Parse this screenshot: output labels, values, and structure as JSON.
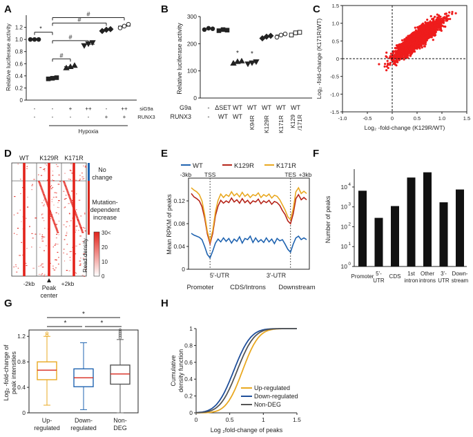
{
  "panels": {
    "A": "A",
    "B": "B",
    "C": "C",
    "D": "D",
    "E": "E",
    "F": "F",
    "G": "G",
    "H": "H"
  },
  "colors": {
    "red": "#d7261b",
    "blue": "#1f63b0",
    "orange": "#e9a820",
    "darkred": "#b52318",
    "navy": "#1e4e9a",
    "gray": "#555555",
    "link": "#1f63b0"
  },
  "chart_data": [
    {
      "id": "A",
      "type": "scatter",
      "ylabel": "Relative luciferase activity",
      "ylim": [
        0,
        1.4
      ],
      "yticks": [
        "0",
        "0.2",
        "0.4",
        "0.6",
        "0.8",
        "1.0",
        "1.2"
      ],
      "rows": [
        {
          "name": "siG9a",
          "values": [
            "-",
            "-",
            "+",
            "++",
            "-",
            "++"
          ]
        },
        {
          "name": "RUNX3",
          "values": [
            "-",
            "-",
            "-",
            "-",
            "+",
            "+"
          ]
        }
      ],
      "hypoxia_label": "Hypoxia",
      "groups": [
        {
          "mean": 1.0,
          "points": [
            1.0,
            1.0,
            1.0
          ],
          "marker": "circle"
        },
        {
          "mean": 0.36,
          "points": [
            0.35,
            0.36,
            0.37
          ],
          "marker": "square"
        },
        {
          "mean": 0.55,
          "points": [
            0.53,
            0.55,
            0.57
          ],
          "marker": "triangle"
        },
        {
          "mean": 0.92,
          "points": [
            0.9,
            0.93,
            0.95
          ],
          "marker": "triangle-down"
        },
        {
          "mean": 1.15,
          "points": [
            1.14,
            1.16,
            1.17
          ],
          "marker": "diamond"
        },
        {
          "mean": 1.22,
          "points": [
            1.19,
            1.22,
            1.25
          ],
          "marker": "circle-open"
        }
      ],
      "significance": [
        {
          "from": 0,
          "to": 1,
          "label": "*"
        },
        {
          "from": 1,
          "to": 2,
          "label": "#"
        },
        {
          "from": 1,
          "to": 3,
          "label": "#"
        },
        {
          "from": 1,
          "to": 4,
          "label": "#"
        },
        {
          "from": 1,
          "to": 5,
          "label": "#"
        }
      ]
    },
    {
      "id": "B",
      "type": "scatter",
      "ylabel": "Relative luciferase activity",
      "ylim": [
        0,
        300
      ],
      "yticks": [
        "0",
        "100",
        "200",
        "300"
      ],
      "row1_name": "G9a",
      "row2_name": "RUNX3",
      "categories": [
        {
          "g9a": "-",
          "runx3": "-",
          "mean": 255,
          "points": [
            252,
            257,
            255
          ],
          "marker": "circle"
        },
        {
          "g9a": "ΔSET",
          "runx3": "WT",
          "mean": 250,
          "points": [
            248,
            252,
            250
          ],
          "marker": "square"
        },
        {
          "g9a": "WT",
          "runx3": "WT",
          "mean": 132,
          "points": [
            128,
            134,
            136
          ],
          "marker": "triangle",
          "sig": "*"
        },
        {
          "g9a": "WT",
          "runx3": "K94R",
          "mean": 130,
          "points": [
            126,
            130,
            134
          ],
          "marker": "triangle-down",
          "sig": "*"
        },
        {
          "g9a": "WT",
          "runx3": "K129R",
          "mean": 225,
          "points": [
            220,
            226,
            229
          ],
          "marker": "diamond"
        },
        {
          "g9a": "WT",
          "runx3": "K171R",
          "mean": 232,
          "points": [
            224,
            232,
            236
          ],
          "marker": "circle-open"
        },
        {
          "g9a": "WT",
          "runx3": "K129/171R",
          "mean": 238,
          "points": [
            232,
            240,
            242
          ],
          "marker": "square-open"
        }
      ]
    },
    {
      "id": "C",
      "type": "scatter",
      "xlabel": "Log₂ -fold-change (K129R/WT)",
      "ylabel": "Log₂ -fold-change (K171R/WT)",
      "xlim": [
        -1.0,
        1.5
      ],
      "ylim": [
        -1.5,
        1.5
      ],
      "xticks": [
        "-1.0",
        "-0.5",
        "0",
        "0.5",
        "1.0",
        "1.5"
      ],
      "yticks": [
        "-1.5",
        "-1.0",
        "-0.5",
        "0",
        "0.5",
        "1.0",
        "1.5"
      ],
      "color": "#ee1c1c",
      "cloud": {
        "center_x": 0.5,
        "center_y": 0.55,
        "correlation": 0.9,
        "sd_x": 0.22,
        "sd_y": 0.25
      }
    },
    {
      "id": "D",
      "type": "heatmap",
      "columns": [
        "WT",
        "K129R",
        "K171R"
      ],
      "groups": [
        {
          "label": "No change",
          "color": "#1f63b0"
        },
        {
          "label": "Mutation-dependent increase",
          "color": "#d7261b"
        }
      ],
      "x_ticks": [
        "-2kb",
        "+2kb"
      ],
      "center_label": "Peak center",
      "colorbar": {
        "title": "Read density",
        "ticks": [
          "0",
          "10",
          "20",
          "30<"
        ]
      }
    },
    {
      "id": "E",
      "type": "line",
      "ylabel": "Mean RPKM of peaks",
      "ylim": [
        0,
        0.16
      ],
      "yticks": [
        "0",
        "0.04",
        "0.08",
        "0.12"
      ],
      "legend": [
        "WT",
        "K129R",
        "K171R"
      ],
      "top_labels": [
        "-3kb",
        "TSS",
        "TES",
        "+3kb"
      ],
      "regions": [
        "5'-UTR",
        "3'-UTR"
      ],
      "xlabels": [
        "Promoter",
        "CDS/Introns",
        "Downstream"
      ],
      "series": [
        {
          "name": "WT",
          "color": "#1f63b0",
          "values": [
            0.063,
            0.06,
            0.058,
            0.056,
            0.052,
            0.04,
            0.026,
            0.02,
            0.032,
            0.046,
            0.053,
            0.048,
            0.055,
            0.049,
            0.054,
            0.046,
            0.053,
            0.049,
            0.057,
            0.046,
            0.054,
            0.052,
            0.058,
            0.047,
            0.055,
            0.048,
            0.052,
            0.047,
            0.055,
            0.048,
            0.053,
            0.045,
            0.054,
            0.05,
            0.052,
            0.044,
            0.035,
            0.03,
            0.044,
            0.055,
            0.058,
            0.052,
            0.055,
            0.052
          ]
        },
        {
          "name": "K129R",
          "color": "#b52318",
          "values": [
            0.133,
            0.127,
            0.124,
            0.12,
            0.11,
            0.09,
            0.062,
            0.045,
            0.063,
            0.094,
            0.111,
            0.121,
            0.116,
            0.12,
            0.117,
            0.125,
            0.118,
            0.122,
            0.116,
            0.124,
            0.117,
            0.121,
            0.115,
            0.12,
            0.118,
            0.123,
            0.115,
            0.12,
            0.117,
            0.121,
            0.114,
            0.119,
            0.117,
            0.112,
            0.103,
            0.096,
            0.085,
            0.08,
            0.097,
            0.124,
            0.131,
            0.122,
            0.126,
            0.122
          ]
        },
        {
          "name": "K171R",
          "color": "#e9a820",
          "values": [
            0.143,
            0.139,
            0.136,
            0.131,
            0.12,
            0.096,
            0.066,
            0.049,
            0.068,
            0.101,
            0.121,
            0.132,
            0.126,
            0.131,
            0.128,
            0.136,
            0.129,
            0.133,
            0.127,
            0.135,
            0.128,
            0.132,
            0.126,
            0.131,
            0.129,
            0.134,
            0.126,
            0.131,
            0.128,
            0.132,
            0.125,
            0.13,
            0.128,
            0.122,
            0.113,
            0.104,
            0.092,
            0.087,
            0.106,
            0.136,
            0.143,
            0.133,
            0.137,
            0.133
          ]
        }
      ]
    },
    {
      "id": "F",
      "type": "bar",
      "log_scale": true,
      "ylabel": "Number of peaks",
      "yticks": [
        {
          "base": "10",
          "exp": "0"
        },
        {
          "base": "10",
          "exp": "1"
        },
        {
          "base": "10",
          "exp": "2"
        },
        {
          "base": "10",
          "exp": "3"
        },
        {
          "base": "10",
          "exp": "4"
        }
      ],
      "categories": [
        {
          "label": "Promoter",
          "value": 6500,
          "colored": true
        },
        {
          "label": "5'-UTR",
          "value": 280,
          "colored": false
        },
        {
          "label": "CDS",
          "value": 1100,
          "colored": false
        },
        {
          "label": "1st intron",
          "value": 30000,
          "colored": true
        },
        {
          "label": "Other introns",
          "value": 55000,
          "colored": true
        },
        {
          "label": "3'-UTR",
          "value": 1700,
          "colored": false
        },
        {
          "label": "Down-stream",
          "value": 7500,
          "colored": true
        }
      ]
    },
    {
      "id": "G",
      "type": "box",
      "ylabel": "Log₂ -fold-change of peak intensities",
      "ylim": [
        0,
        1.3
      ],
      "yticks": [
        "0",
        "0.4",
        "0.8",
        "1.2"
      ],
      "boxes": [
        {
          "label": "Up-regulated",
          "color": "#e9a820",
          "whisker_low": 0.12,
          "q1": 0.52,
          "median": 0.67,
          "q3": 0.8,
          "whisker_high": 1.2,
          "outliers": [
            1.22,
            1.25
          ]
        },
        {
          "label": "Down-regulated",
          "color": "#1f63b0",
          "whisker_low": 0.05,
          "q1": 0.41,
          "median": 0.55,
          "q3": 0.69,
          "whisker_high": 1.1,
          "outliers": []
        },
        {
          "label": "Non-DEG",
          "color": "#555555",
          "whisker_low": 0.0,
          "q1": 0.45,
          "median": 0.61,
          "q3": 0.75,
          "whisker_high": 1.15,
          "outliers": [
            1.18,
            1.21,
            1.24,
            1.27,
            1.3
          ]
        }
      ],
      "significance": [
        {
          "from": 0,
          "to": 2,
          "label": "*"
        },
        {
          "from": 0,
          "to": 1,
          "label": "*"
        },
        {
          "from": 1,
          "to": 2,
          "label": "*"
        }
      ]
    },
    {
      "id": "H",
      "type": "line",
      "xlabel": "Log ₂fold-change  of peaks",
      "ylabel": "Cumulative density function",
      "xlim": [
        0,
        1.5
      ],
      "ylim": [
        0,
        1
      ],
      "xticks": [
        "0",
        "0.5",
        "1",
        "1.5"
      ],
      "yticks": [
        "0",
        "0.2",
        "0.4",
        "0.6",
        "0.8",
        "1"
      ],
      "series": [
        {
          "name": "Up-regulated",
          "color": "#e9a820",
          "mu": 0.69,
          "sigma": 0.19
        },
        {
          "name": "Down-regulated",
          "color": "#1e4e9a",
          "mu": 0.56,
          "sigma": 0.2
        },
        {
          "name": "Non-DEG",
          "color": "#555555",
          "mu": 0.61,
          "sigma": 0.2
        }
      ]
    }
  ]
}
